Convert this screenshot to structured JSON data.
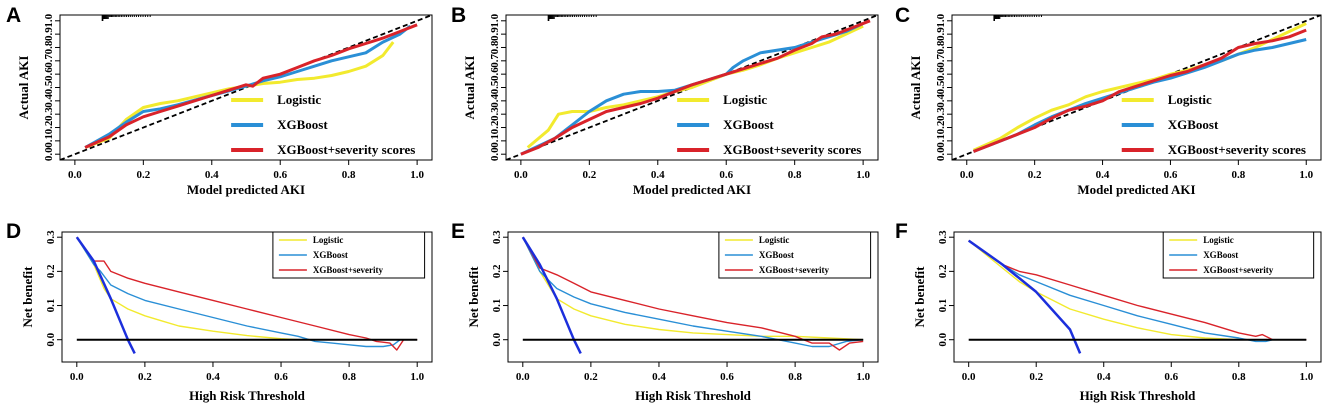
{
  "colors": {
    "logistic": "#f2ea2e",
    "xgboost": "#2a8fd6",
    "severity": "#d9232a",
    "treat_all": "#1c2fdc",
    "reference": "#000000"
  },
  "chart_data": [
    {
      "panel": "A",
      "type": "line",
      "kind": "calibration",
      "xlabel": "Model predicted AKI",
      "ylabel": "Actual AKI",
      "xlim": [
        0,
        1
      ],
      "ylim": [
        0,
        1
      ],
      "xticks": [
        "0.0",
        "0.2",
        "0.4",
        "0.6",
        "0.8",
        "1.0"
      ],
      "yticks": [
        "0.0",
        "0.1",
        "0.2",
        "0.3",
        "0.4",
        "0.5",
        "0.6",
        "0.7",
        "0.8",
        "0.9",
        "1.0"
      ],
      "legend": [
        "Logistic",
        "XGBoost",
        "XGBoost+severity scores"
      ],
      "series": [
        {
          "name": "Logistic",
          "color_key": "logistic",
          "x": [
            0.03,
            0.1,
            0.15,
            0.2,
            0.25,
            0.3,
            0.35,
            0.4,
            0.45,
            0.5,
            0.55,
            0.6,
            0.65,
            0.7,
            0.75,
            0.8,
            0.85,
            0.9,
            0.93
          ],
          "y": [
            0.05,
            0.12,
            0.26,
            0.35,
            0.38,
            0.4,
            0.43,
            0.46,
            0.49,
            0.51,
            0.53,
            0.54,
            0.56,
            0.57,
            0.59,
            0.62,
            0.66,
            0.74,
            0.84
          ]
        },
        {
          "name": "XGBoost",
          "color_key": "xgboost",
          "x": [
            0.03,
            0.1,
            0.15,
            0.2,
            0.25,
            0.3,
            0.4,
            0.5,
            0.55,
            0.6,
            0.65,
            0.7,
            0.75,
            0.8,
            0.85,
            0.9,
            0.95,
            0.98
          ],
          "y": [
            0.05,
            0.15,
            0.24,
            0.32,
            0.34,
            0.37,
            0.44,
            0.51,
            0.55,
            0.58,
            0.62,
            0.66,
            0.7,
            0.73,
            0.76,
            0.84,
            0.9,
            0.96
          ]
        },
        {
          "name": "XGBoost+severity scores",
          "color_key": "severity",
          "x": [
            0.03,
            0.1,
            0.15,
            0.2,
            0.25,
            0.3,
            0.35,
            0.4,
            0.45,
            0.5,
            0.52,
            0.55,
            0.6,
            0.65,
            0.7,
            0.75,
            0.8,
            0.85,
            0.9,
            0.95,
            1.0
          ],
          "y": [
            0.05,
            0.13,
            0.22,
            0.28,
            0.32,
            0.36,
            0.4,
            0.44,
            0.48,
            0.52,
            0.51,
            0.57,
            0.6,
            0.65,
            0.7,
            0.74,
            0.79,
            0.83,
            0.87,
            0.92,
            0.97
          ]
        }
      ]
    },
    {
      "panel": "B",
      "type": "line",
      "kind": "calibration",
      "xlabel": "Model predicted AKI",
      "ylabel": "Actual AKI",
      "xlim": [
        0,
        1
      ],
      "ylim": [
        0,
        1
      ],
      "xticks": [
        "0.0",
        "0.2",
        "0.4",
        "0.6",
        "0.8",
        "1.0"
      ],
      "yticks": [
        "0.0",
        "0.1",
        "0.2",
        "0.3",
        "0.4",
        "0.5",
        "0.6",
        "0.7",
        "0.8",
        "0.9",
        "1.0"
      ],
      "legend": [
        "Logistic",
        "XGBoost",
        "XGBoost+severity scores"
      ],
      "series": [
        {
          "name": "Logistic",
          "color_key": "logistic",
          "x": [
            0.02,
            0.08,
            0.11,
            0.15,
            0.2,
            0.25,
            0.3,
            0.35,
            0.4,
            0.45,
            0.5,
            0.55,
            0.6,
            0.65,
            0.7,
            0.75,
            0.8,
            0.85,
            0.9,
            0.95,
            1.0
          ],
          "y": [
            0.05,
            0.18,
            0.3,
            0.32,
            0.32,
            0.35,
            0.37,
            0.4,
            0.43,
            0.47,
            0.5,
            0.55,
            0.6,
            0.63,
            0.67,
            0.72,
            0.76,
            0.8,
            0.84,
            0.9,
            0.96
          ]
        },
        {
          "name": "XGBoost",
          "color_key": "xgboost",
          "x": [
            0.0,
            0.05,
            0.1,
            0.15,
            0.2,
            0.25,
            0.3,
            0.35,
            0.4,
            0.45,
            0.5,
            0.55,
            0.6,
            0.62,
            0.65,
            0.7,
            0.75,
            0.8,
            0.85,
            0.9,
            0.95,
            1.0
          ],
          "y": [
            0.0,
            0.06,
            0.12,
            0.22,
            0.32,
            0.4,
            0.45,
            0.47,
            0.47,
            0.48,
            0.52,
            0.56,
            0.6,
            0.65,
            0.7,
            0.76,
            0.78,
            0.8,
            0.84,
            0.88,
            0.92,
            0.98
          ]
        },
        {
          "name": "XGBoost+severity scores",
          "color_key": "severity",
          "x": [
            0.0,
            0.05,
            0.1,
            0.15,
            0.2,
            0.25,
            0.3,
            0.35,
            0.4,
            0.45,
            0.5,
            0.55,
            0.6,
            0.65,
            0.7,
            0.75,
            0.8,
            0.85,
            0.88,
            0.92,
            0.97,
            1.02
          ],
          "y": [
            0.0,
            0.05,
            0.12,
            0.2,
            0.26,
            0.32,
            0.35,
            0.38,
            0.42,
            0.47,
            0.52,
            0.56,
            0.6,
            0.64,
            0.68,
            0.72,
            0.78,
            0.83,
            0.88,
            0.9,
            0.95,
            1.0
          ]
        }
      ]
    },
    {
      "panel": "C",
      "type": "line",
      "kind": "calibration",
      "xlabel": "Model predicted AKI",
      "ylabel": "Actual AKI",
      "xlim": [
        0,
        1
      ],
      "ylim": [
        0,
        1
      ],
      "xticks": [
        "0.0",
        "0.2",
        "0.4",
        "0.6",
        "0.8",
        "1.0"
      ],
      "yticks": [
        "0.0",
        "0.1",
        "0.2",
        "0.3",
        "0.4",
        "0.5",
        "0.6",
        "0.7",
        "0.8",
        "0.9",
        "1.0"
      ],
      "legend": [
        "Logistic",
        "XGBoost",
        "XGBoost+severity scores"
      ],
      "series": [
        {
          "name": "Logistic",
          "color_key": "logistic",
          "x": [
            0.02,
            0.1,
            0.15,
            0.2,
            0.25,
            0.3,
            0.35,
            0.4,
            0.45,
            0.5,
            0.55,
            0.6,
            0.65,
            0.7,
            0.75,
            0.8,
            0.85,
            0.9,
            0.95,
            1.0
          ],
          "y": [
            0.03,
            0.12,
            0.2,
            0.27,
            0.33,
            0.37,
            0.43,
            0.47,
            0.5,
            0.53,
            0.56,
            0.6,
            0.63,
            0.67,
            0.7,
            0.75,
            0.8,
            0.86,
            0.92,
            0.98
          ]
        },
        {
          "name": "XGBoost",
          "color_key": "xgboost",
          "x": [
            0.02,
            0.1,
            0.15,
            0.2,
            0.25,
            0.3,
            0.35,
            0.4,
            0.45,
            0.5,
            0.55,
            0.6,
            0.65,
            0.7,
            0.75,
            0.8,
            0.85,
            0.9,
            0.95,
            1.0
          ],
          "y": [
            0.02,
            0.1,
            0.15,
            0.22,
            0.28,
            0.33,
            0.38,
            0.42,
            0.46,
            0.5,
            0.54,
            0.57,
            0.61,
            0.65,
            0.7,
            0.75,
            0.78,
            0.8,
            0.83,
            0.86
          ]
        },
        {
          "name": "XGBoost+severity scores",
          "color_key": "severity",
          "x": [
            0.02,
            0.1,
            0.15,
            0.2,
            0.25,
            0.3,
            0.35,
            0.4,
            0.45,
            0.5,
            0.55,
            0.6,
            0.65,
            0.7,
            0.75,
            0.8,
            0.85,
            0.9,
            0.95,
            1.0
          ],
          "y": [
            0.02,
            0.1,
            0.15,
            0.2,
            0.27,
            0.33,
            0.36,
            0.4,
            0.47,
            0.51,
            0.55,
            0.59,
            0.62,
            0.67,
            0.72,
            0.8,
            0.83,
            0.85,
            0.88,
            0.93
          ]
        }
      ]
    },
    {
      "panel": "D",
      "type": "line",
      "kind": "decision_curve",
      "xlabel": "High Risk Threshold",
      "ylabel": "Net benefit",
      "xlim": [
        0,
        1
      ],
      "ylim": [
        -0.05,
        0.3
      ],
      "xticks": [
        "0.0",
        "0.2",
        "0.4",
        "0.6",
        "0.8",
        "1.0"
      ],
      "yticks": [
        "0.0",
        "0.1",
        "0.2",
        "0.3"
      ],
      "legend": [
        "Logistic",
        "XGBoost",
        "XGBoost+severity"
      ],
      "series": [
        {
          "name": "Logistic",
          "color_key": "logistic",
          "x": [
            0.0,
            0.05,
            0.08,
            0.1,
            0.15,
            0.2,
            0.25,
            0.3,
            0.4,
            0.5,
            0.6,
            0.65,
            0.7,
            1.0
          ],
          "y": [
            0.3,
            0.22,
            0.15,
            0.12,
            0.09,
            0.07,
            0.055,
            0.04,
            0.025,
            0.012,
            0.003,
            0.0,
            0.0,
            0.0
          ]
        },
        {
          "name": "XGBoost",
          "color_key": "xgboost",
          "x": [
            0.0,
            0.05,
            0.07,
            0.1,
            0.15,
            0.2,
            0.3,
            0.4,
            0.5,
            0.6,
            0.65,
            0.7,
            0.75,
            0.8,
            0.85,
            0.9,
            0.93,
            0.95,
            1.0
          ],
          "y": [
            0.3,
            0.22,
            0.2,
            0.16,
            0.135,
            0.115,
            0.09,
            0.065,
            0.04,
            0.02,
            0.01,
            -0.005,
            -0.01,
            -0.015,
            -0.02,
            -0.02,
            -0.015,
            0.0,
            0.0
          ]
        },
        {
          "name": "XGBoost+severity",
          "color_key": "severity",
          "x": [
            0.0,
            0.05,
            0.08,
            0.1,
            0.15,
            0.2,
            0.3,
            0.4,
            0.5,
            0.6,
            0.7,
            0.8,
            0.85,
            0.88,
            0.92,
            0.94,
            0.96,
            0.98,
            1.0
          ],
          "y": [
            0.3,
            0.23,
            0.23,
            0.2,
            0.18,
            0.165,
            0.14,
            0.115,
            0.09,
            0.065,
            0.04,
            0.015,
            0.005,
            -0.005,
            -0.01,
            -0.03,
            0.0,
            0.0,
            0.0
          ]
        },
        {
          "name": "All",
          "color_key": "treat_all",
          "x": [
            0.0,
            0.05,
            0.1,
            0.15,
            0.17
          ],
          "y": [
            0.3,
            0.23,
            0.12,
            0.0,
            -0.04
          ]
        },
        {
          "name": "None",
          "color_key": "reference",
          "x": [
            0.0,
            1.0
          ],
          "y": [
            0.0,
            0.0
          ]
        }
      ]
    },
    {
      "panel": "E",
      "type": "line",
      "kind": "decision_curve",
      "xlabel": "High Risk Threshold",
      "ylabel": "Net benefit",
      "xlim": [
        0,
        1
      ],
      "ylim": [
        -0.05,
        0.3
      ],
      "xticks": [
        "0.0",
        "0.2",
        "0.4",
        "0.6",
        "0.8",
        "1.0"
      ],
      "yticks": [
        "0.0",
        "0.1",
        "0.2",
        "0.3"
      ],
      "legend": [
        "Logistic",
        "XGBoost",
        "XGBoost+severity"
      ],
      "series": [
        {
          "name": "Logistic",
          "color_key": "logistic",
          "x": [
            0.0,
            0.05,
            0.1,
            0.15,
            0.2,
            0.3,
            0.4,
            0.5,
            0.6,
            0.7,
            0.8,
            0.9,
            1.0
          ],
          "y": [
            0.3,
            0.2,
            0.12,
            0.09,
            0.07,
            0.045,
            0.03,
            0.02,
            0.015,
            0.01,
            0.01,
            0.005,
            0.0
          ]
        },
        {
          "name": "XGBoost",
          "color_key": "xgboost",
          "x": [
            0.0,
            0.05,
            0.1,
            0.15,
            0.2,
            0.3,
            0.4,
            0.5,
            0.6,
            0.7,
            0.75,
            0.8,
            0.85,
            0.9,
            0.95,
            1.0
          ],
          "y": [
            0.3,
            0.2,
            0.15,
            0.125,
            0.105,
            0.08,
            0.06,
            0.04,
            0.025,
            0.01,
            0.0,
            -0.01,
            -0.02,
            -0.02,
            -0.005,
            0.0
          ]
        },
        {
          "name": "XGBoost+severity",
          "color_key": "severity",
          "x": [
            0.0,
            0.05,
            0.1,
            0.15,
            0.2,
            0.3,
            0.4,
            0.5,
            0.6,
            0.7,
            0.8,
            0.85,
            0.9,
            0.93,
            0.96,
            1.0
          ],
          "y": [
            0.3,
            0.21,
            0.19,
            0.165,
            0.14,
            0.115,
            0.09,
            0.07,
            0.05,
            0.035,
            0.01,
            -0.01,
            -0.01,
            -0.03,
            -0.01,
            -0.005
          ]
        },
        {
          "name": "All",
          "color_key": "treat_all",
          "x": [
            0.0,
            0.05,
            0.1,
            0.15,
            0.17
          ],
          "y": [
            0.3,
            0.22,
            0.12,
            0.0,
            -0.04
          ]
        },
        {
          "name": "None",
          "color_key": "reference",
          "x": [
            0.0,
            1.0
          ],
          "y": [
            0.0,
            0.0
          ]
        }
      ]
    },
    {
      "panel": "F",
      "type": "line",
      "kind": "decision_curve",
      "xlabel": "High Risk Threshold",
      "ylabel": "Net benefit",
      "xlim": [
        0,
        1
      ],
      "ylim": [
        -0.05,
        0.3
      ],
      "xticks": [
        "0.0",
        "0.2",
        "0.4",
        "0.6",
        "0.8",
        "1.0"
      ],
      "yticks": [
        "0.0",
        "0.1",
        "0.2",
        "0.3"
      ],
      "legend": [
        "Logistic",
        "XGBoost",
        "XGBoost+severity"
      ],
      "series": [
        {
          "name": "Logistic",
          "color_key": "logistic",
          "x": [
            0.0,
            0.1,
            0.15,
            0.2,
            0.3,
            0.4,
            0.5,
            0.6,
            0.7,
            0.8,
            0.9,
            1.0
          ],
          "y": [
            0.29,
            0.21,
            0.17,
            0.14,
            0.09,
            0.06,
            0.035,
            0.015,
            0.005,
            0.0,
            0.0,
            0.0
          ]
        },
        {
          "name": "XGBoost",
          "color_key": "xgboost",
          "x": [
            0.0,
            0.1,
            0.15,
            0.2,
            0.3,
            0.4,
            0.5,
            0.6,
            0.7,
            0.8,
            0.85,
            0.88,
            0.9,
            1.0
          ],
          "y": [
            0.29,
            0.22,
            0.19,
            0.17,
            0.13,
            0.1,
            0.07,
            0.045,
            0.02,
            0.005,
            -0.005,
            -0.005,
            0.0,
            0.0
          ]
        },
        {
          "name": "XGBoost+severity",
          "color_key": "severity",
          "x": [
            0.0,
            0.1,
            0.15,
            0.2,
            0.3,
            0.4,
            0.5,
            0.6,
            0.7,
            0.8,
            0.85,
            0.87,
            0.9,
            1.0
          ],
          "y": [
            0.29,
            0.22,
            0.2,
            0.19,
            0.16,
            0.13,
            0.1,
            0.075,
            0.05,
            0.02,
            0.01,
            0.015,
            0.0,
            0.0
          ]
        },
        {
          "name": "All",
          "color_key": "treat_all",
          "x": [
            0.0,
            0.1,
            0.2,
            0.3,
            0.33
          ],
          "y": [
            0.29,
            0.22,
            0.14,
            0.03,
            -0.04
          ]
        },
        {
          "name": "None",
          "color_key": "reference",
          "x": [
            0.0,
            1.0
          ],
          "y": [
            0.0,
            0.0
          ]
        }
      ]
    }
  ]
}
